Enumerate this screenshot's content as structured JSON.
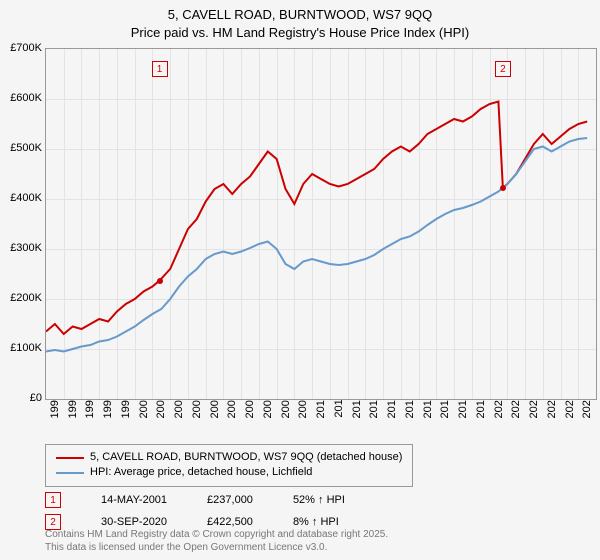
{
  "title_line1": "5, CAVELL ROAD, BURNTWOOD, WS7 9QQ",
  "title_line2": "Price paid vs. HM Land Registry's House Price Index (HPI)",
  "plot": {
    "x_min": 1995,
    "x_max": 2026,
    "y_min": 0,
    "y_max": 700,
    "y_ticks": [
      0,
      100,
      200,
      300,
      400,
      500,
      600,
      700
    ],
    "y_tick_labels": [
      "£0",
      "£100K",
      "£200K",
      "£300K",
      "£400K",
      "£500K",
      "£600K",
      "£700K"
    ],
    "x_ticks": [
      1995,
      1996,
      1997,
      1998,
      1999,
      2000,
      2001,
      2002,
      2003,
      2004,
      2005,
      2006,
      2007,
      2008,
      2009,
      2010,
      2011,
      2012,
      2013,
      2014,
      2015,
      2016,
      2017,
      2018,
      2019,
      2020,
      2021,
      2022,
      2023,
      2024,
      2025
    ],
    "grid_color": "#e3e3e3",
    "background_color": "#f5f5f5",
    "border_color": "#999999",
    "series": [
      {
        "name": "price_paid",
        "color": "#cc0000",
        "width": 2,
        "points": [
          [
            1995,
            135
          ],
          [
            1995.5,
            150
          ],
          [
            1996,
            130
          ],
          [
            1996.5,
            145
          ],
          [
            1997,
            140
          ],
          [
            1997.5,
            150
          ],
          [
            1998,
            160
          ],
          [
            1998.5,
            155
          ],
          [
            1999,
            175
          ],
          [
            1999.5,
            190
          ],
          [
            2000,
            200
          ],
          [
            2000.5,
            215
          ],
          [
            2001,
            225
          ],
          [
            2001.4,
            237
          ],
          [
            2002,
            260
          ],
          [
            2002.5,
            300
          ],
          [
            2003,
            340
          ],
          [
            2003.5,
            360
          ],
          [
            2004,
            395
          ],
          [
            2004.5,
            420
          ],
          [
            2005,
            430
          ],
          [
            2005.5,
            410
          ],
          [
            2006,
            430
          ],
          [
            2006.5,
            445
          ],
          [
            2007,
            470
          ],
          [
            2007.5,
            495
          ],
          [
            2008,
            480
          ],
          [
            2008.5,
            420
          ],
          [
            2009,
            390
          ],
          [
            2009.5,
            430
          ],
          [
            2010,
            450
          ],
          [
            2010.5,
            440
          ],
          [
            2011,
            430
          ],
          [
            2011.5,
            425
          ],
          [
            2012,
            430
          ],
          [
            2012.5,
            440
          ],
          [
            2013,
            450
          ],
          [
            2013.5,
            460
          ],
          [
            2014,
            480
          ],
          [
            2014.5,
            495
          ],
          [
            2015,
            505
          ],
          [
            2015.5,
            495
          ],
          [
            2016,
            510
          ],
          [
            2016.5,
            530
          ],
          [
            2017,
            540
          ],
          [
            2017.5,
            550
          ],
          [
            2018,
            560
          ],
          [
            2018.5,
            555
          ],
          [
            2019,
            565
          ],
          [
            2019.5,
            580
          ],
          [
            2020,
            590
          ],
          [
            2020.5,
            595
          ],
          [
            2020.75,
            422
          ],
          [
            2021,
            430
          ],
          [
            2021.5,
            450
          ],
          [
            2022,
            480
          ],
          [
            2022.5,
            510
          ],
          [
            2023,
            530
          ],
          [
            2023.5,
            510
          ],
          [
            2024,
            525
          ],
          [
            2024.5,
            540
          ],
          [
            2025,
            550
          ],
          [
            2025.5,
            555
          ]
        ]
      },
      {
        "name": "hpi",
        "color": "#6699cc",
        "width": 2,
        "points": [
          [
            1995,
            95
          ],
          [
            1995.5,
            98
          ],
          [
            1996,
            95
          ],
          [
            1996.5,
            100
          ],
          [
            1997,
            105
          ],
          [
            1997.5,
            108
          ],
          [
            1998,
            115
          ],
          [
            1998.5,
            118
          ],
          [
            1999,
            125
          ],
          [
            1999.5,
            135
          ],
          [
            2000,
            145
          ],
          [
            2000.5,
            158
          ],
          [
            2001,
            170
          ],
          [
            2001.5,
            180
          ],
          [
            2002,
            200
          ],
          [
            2002.5,
            225
          ],
          [
            2003,
            245
          ],
          [
            2003.5,
            260
          ],
          [
            2004,
            280
          ],
          [
            2004.5,
            290
          ],
          [
            2005,
            295
          ],
          [
            2005.5,
            290
          ],
          [
            2006,
            295
          ],
          [
            2006.5,
            302
          ],
          [
            2007,
            310
          ],
          [
            2007.5,
            315
          ],
          [
            2008,
            300
          ],
          [
            2008.5,
            270
          ],
          [
            2009,
            260
          ],
          [
            2009.5,
            275
          ],
          [
            2010,
            280
          ],
          [
            2010.5,
            275
          ],
          [
            2011,
            270
          ],
          [
            2011.5,
            268
          ],
          [
            2012,
            270
          ],
          [
            2012.5,
            275
          ],
          [
            2013,
            280
          ],
          [
            2013.5,
            288
          ],
          [
            2014,
            300
          ],
          [
            2014.5,
            310
          ],
          [
            2015,
            320
          ],
          [
            2015.5,
            325
          ],
          [
            2016,
            335
          ],
          [
            2016.5,
            348
          ],
          [
            2017,
            360
          ],
          [
            2017.5,
            370
          ],
          [
            2018,
            378
          ],
          [
            2018.5,
            382
          ],
          [
            2019,
            388
          ],
          [
            2019.5,
            395
          ],
          [
            2020,
            405
          ],
          [
            2020.5,
            415
          ],
          [
            2021,
            430
          ],
          [
            2021.5,
            450
          ],
          [
            2022,
            475
          ],
          [
            2022.5,
            500
          ],
          [
            2023,
            505
          ],
          [
            2023.5,
            495
          ],
          [
            2024,
            505
          ],
          [
            2024.5,
            515
          ],
          [
            2025,
            520
          ],
          [
            2025.5,
            522
          ]
        ]
      }
    ],
    "markers": [
      {
        "id": "1",
        "x": 2001.4,
        "y": 237,
        "box_y": 660,
        "dot_color": "#cc0000"
      },
      {
        "id": "2",
        "x": 2020.75,
        "y": 422,
        "box_y": 660,
        "dot_color": "#cc0000"
      }
    ]
  },
  "legend": {
    "items": [
      {
        "color": "#cc0000",
        "label": "5, CAVELL ROAD, BURNTWOOD, WS7 9QQ (detached house)"
      },
      {
        "color": "#6699cc",
        "label": "HPI: Average price, detached house, Lichfield"
      }
    ]
  },
  "annotations": [
    {
      "id": "1",
      "date": "14-MAY-2001",
      "price": "£237,000",
      "delta": "52% ↑ HPI"
    },
    {
      "id": "2",
      "date": "30-SEP-2020",
      "price": "£422,500",
      "delta": "8% ↑ HPI"
    }
  ],
  "footer_line1": "Contains HM Land Registry data © Crown copyright and database right 2025.",
  "footer_line2": "This data is licensed under the Open Government Licence v3.0."
}
